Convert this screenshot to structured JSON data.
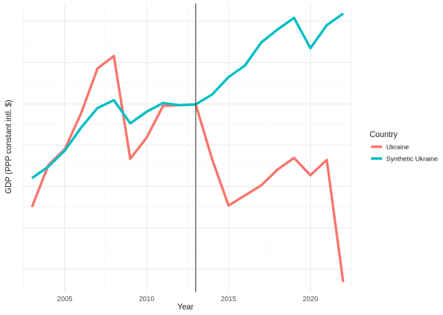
{
  "chart_data": {
    "type": "line",
    "xlabel": "Year",
    "ylabel": "GDP (PPP constant intl. $)",
    "xlim": [
      2002.4,
      2022.6
    ],
    "ylim": [
      0,
      100
    ],
    "y_tick_labels_shown": false,
    "x_ticks": [
      2005,
      2010,
      2015,
      2020
    ],
    "grid": true,
    "vline_x": 2013,
    "legend": {
      "title": "Country",
      "placement": "right"
    },
    "series": [
      {
        "name": "Ukraine",
        "color": "#F8766D",
        "x": [
          2003,
          2004,
          2005,
          2006,
          2007,
          2008,
          2009,
          2010,
          2011,
          2012,
          2013,
          2014,
          2015,
          2016,
          2017,
          2018,
          2019,
          2020,
          2021,
          2022
        ],
        "y": [
          29.5,
          44,
          49.5,
          62,
          77.5,
          81.8,
          46.2,
          53.5,
          64.5,
          64.8,
          65,
          46,
          30,
          33.5,
          37,
          42.5,
          46.5,
          40.5,
          45.8,
          3.5
        ]
      },
      {
        "name": "Synthetic Ukraine",
        "color": "#00BFC4",
        "x": [
          2003,
          2004,
          2005,
          2006,
          2007,
          2008,
          2009,
          2010,
          2011,
          2012,
          2013,
          2014,
          2015,
          2016,
          2017,
          2018,
          2019,
          2020,
          2021,
          2022
        ],
        "y": [
          39.5,
          43.5,
          49,
          57,
          63.8,
          66.5,
          58.5,
          62.5,
          65.5,
          64.8,
          65,
          68.5,
          74.5,
          78.5,
          86.5,
          91,
          95,
          84.5,
          92.5,
          96.5
        ]
      }
    ]
  }
}
